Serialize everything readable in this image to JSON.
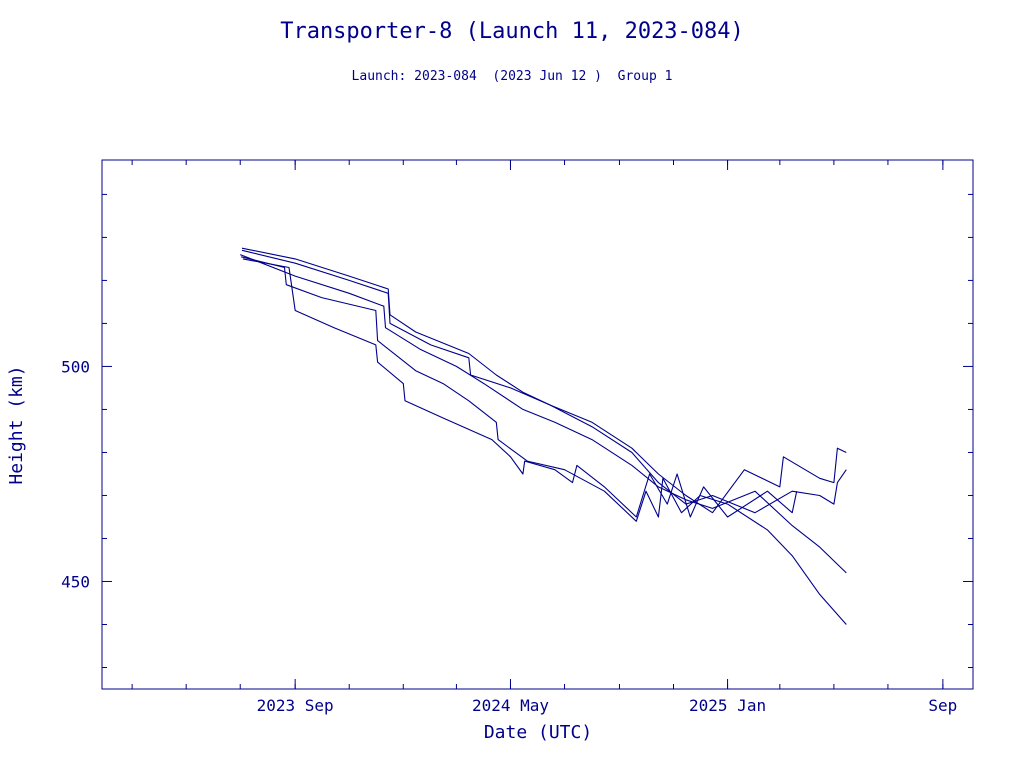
{
  "chart_data": {
    "type": "line",
    "title": "Transporter-8 (Launch 11, 2023-084)",
    "subtitle": "Launch: 2023-084  (2023 Jun 12 )  Group 1",
    "xlabel": "Date (UTC)",
    "ylabel": "Height (km)",
    "x_ticks": [
      {
        "label": "2023 Sep",
        "date": "2023-09-01"
      },
      {
        "label": "2024 May",
        "date": "2024-05-01"
      },
      {
        "label": "2025 Jan",
        "date": "2025-01-01"
      },
      {
        "label": "Sep",
        "date": "2025-09-01"
      }
    ],
    "y_ticks": [
      450,
      500
    ],
    "xlim": [
      "2023-01-26",
      "2025-10-05"
    ],
    "ylim": [
      425,
      548
    ],
    "grid": false,
    "legend": "none",
    "line_color": "#00008b",
    "series": [
      {
        "points": [
          [
            "2023-07-03",
            527.5
          ],
          [
            "2023-09-01",
            525
          ],
          [
            "2023-11-01",
            521
          ],
          [
            "2023-12-15",
            518
          ],
          [
            "2023-12-17",
            512
          ],
          [
            "2024-01-15",
            508
          ],
          [
            "2024-03-15",
            503
          ],
          [
            "2024-04-15",
            498
          ],
          [
            "2024-05-15",
            494
          ],
          [
            "2024-06-15",
            491
          ],
          [
            "2024-08-01",
            487
          ],
          [
            "2024-09-15",
            481
          ],
          [
            "2024-10-15",
            475
          ],
          [
            "2024-11-15",
            470
          ],
          [
            "2024-12-15",
            466
          ],
          [
            "2025-01-20",
            476
          ],
          [
            "2025-03-01",
            472
          ],
          [
            "2025-03-05",
            479
          ],
          [
            "2025-04-15",
            474
          ],
          [
            "2025-05-01",
            473
          ],
          [
            "2025-05-05",
            481
          ],
          [
            "2025-05-15",
            480
          ]
        ]
      },
      {
        "points": [
          [
            "2023-07-03",
            527
          ],
          [
            "2023-09-01",
            524
          ],
          [
            "2023-11-01",
            520
          ],
          [
            "2023-12-15",
            517
          ],
          [
            "2023-12-17",
            510
          ],
          [
            "2024-02-01",
            505
          ],
          [
            "2024-03-15",
            502
          ],
          [
            "2024-03-17",
            498
          ],
          [
            "2024-05-01",
            495
          ],
          [
            "2024-06-15",
            491
          ],
          [
            "2024-08-01",
            486
          ],
          [
            "2024-09-15",
            480
          ],
          [
            "2024-10-15",
            473
          ],
          [
            "2024-11-15",
            468
          ],
          [
            "2024-12-15",
            470
          ],
          [
            "2025-02-01",
            466
          ],
          [
            "2025-03-15",
            471
          ],
          [
            "2025-04-15",
            470
          ],
          [
            "2025-05-01",
            468
          ],
          [
            "2025-05-05",
            473
          ],
          [
            "2025-05-15",
            476
          ]
        ]
      },
      {
        "points": [
          [
            "2023-07-01",
            526
          ],
          [
            "2023-09-01",
            521
          ],
          [
            "2023-11-01",
            517
          ],
          [
            "2023-12-10",
            514
          ],
          [
            "2023-12-12",
            509
          ],
          [
            "2024-01-20",
            504
          ],
          [
            "2024-03-01",
            500
          ],
          [
            "2024-04-01",
            496
          ],
          [
            "2024-05-15",
            490
          ],
          [
            "2024-06-20",
            487
          ],
          [
            "2024-08-01",
            483
          ],
          [
            "2024-09-15",
            477
          ],
          [
            "2024-10-15",
            472
          ],
          [
            "2024-11-15",
            469
          ],
          [
            "2024-12-15",
            467
          ],
          [
            "2025-02-01",
            471
          ],
          [
            "2025-03-15",
            463
          ],
          [
            "2025-04-15",
            458
          ],
          [
            "2025-05-15",
            452
          ]
        ]
      },
      {
        "points": [
          [
            "2023-07-02",
            525.5
          ],
          [
            "2023-08-20",
            523
          ],
          [
            "2023-08-22",
            519
          ],
          [
            "2023-10-01",
            516
          ],
          [
            "2023-12-01",
            513
          ],
          [
            "2023-12-03",
            506
          ],
          [
            "2024-01-15",
            499
          ],
          [
            "2024-02-15",
            496
          ],
          [
            "2024-03-15",
            492
          ],
          [
            "2024-04-15",
            487
          ],
          [
            "2024-04-17",
            483
          ],
          [
            "2024-05-20",
            478
          ],
          [
            "2024-07-01",
            476
          ],
          [
            "2024-08-15",
            471
          ],
          [
            "2024-09-20",
            464
          ],
          [
            "2024-10-01",
            471
          ],
          [
            "2024-10-15",
            465
          ],
          [
            "2024-10-20",
            474
          ],
          [
            "2024-11-10",
            466
          ],
          [
            "2024-12-01",
            470
          ],
          [
            "2025-01-01",
            468
          ],
          [
            "2025-02-15",
            462
          ],
          [
            "2025-03-15",
            456
          ],
          [
            "2025-04-15",
            447
          ],
          [
            "2025-05-15",
            440
          ]
        ]
      },
      {
        "points": [
          [
            "2023-07-04",
            525
          ],
          [
            "2023-08-25",
            523
          ],
          [
            "2023-09-01",
            513
          ],
          [
            "2023-10-15",
            509
          ],
          [
            "2023-12-01",
            505
          ],
          [
            "2023-12-03",
            501
          ],
          [
            "2024-01-01",
            496
          ],
          [
            "2024-01-03",
            492
          ],
          [
            "2024-02-15",
            488
          ],
          [
            "2024-04-10",
            483
          ],
          [
            "2024-05-01",
            479
          ],
          [
            "2024-05-15",
            475
          ],
          [
            "2024-05-17",
            478
          ],
          [
            "2024-06-20",
            476
          ],
          [
            "2024-07-10",
            473
          ],
          [
            "2024-07-15",
            477
          ],
          [
            "2024-08-15",
            472
          ],
          [
            "2024-09-20",
            465
          ],
          [
            "2024-10-05",
            475
          ],
          [
            "2024-10-25",
            468
          ],
          [
            "2024-11-05",
            475
          ],
          [
            "2024-11-20",
            465
          ],
          [
            "2024-12-05",
            472
          ],
          [
            "2025-01-01",
            465
          ],
          [
            "2025-02-15",
            471
          ],
          [
            "2025-03-15",
            466
          ],
          [
            "2025-03-20",
            471
          ]
        ]
      }
    ]
  }
}
